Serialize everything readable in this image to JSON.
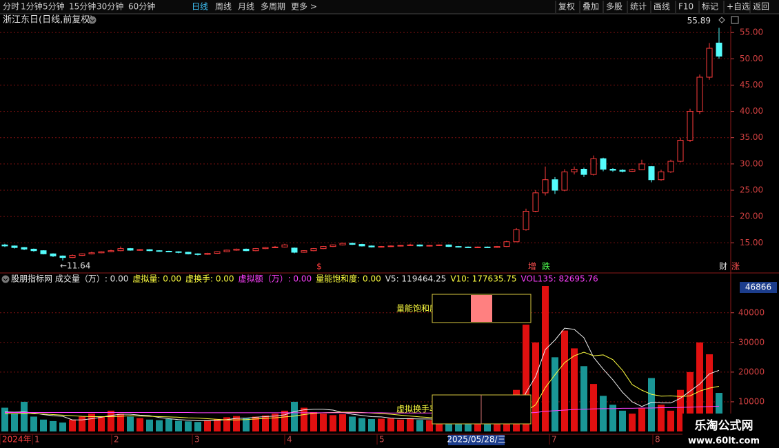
{
  "toolbar": {
    "left": [
      "分时",
      "1分钟",
      "5分钟",
      "15分钟",
      "30分钟",
      "60分钟",
      "日线",
      "周线",
      "月线",
      "多周期",
      "更多 >"
    ],
    "right": [
      "复权",
      "叠加",
      "多股",
      "统计",
      "画线",
      "F10",
      "标记",
      "+自选",
      "返回"
    ]
  },
  "stock_title": "浙江东日(日线,前复权)",
  "chart_data": [
    {
      "type": "candlestick",
      "candles": [
        [
          14.6,
          14.4,
          14.8,
          14.2
        ],
        [
          14.4,
          14.1,
          14.5,
          13.9
        ],
        [
          14.1,
          13.8,
          14.2,
          13.6
        ],
        [
          13.8,
          13.5,
          13.9,
          13.3
        ],
        [
          13.5,
          12.9,
          13.6,
          12.8
        ],
        [
          12.9,
          12.5,
          13.0,
          12.3
        ],
        [
          12.5,
          12.2,
          12.6,
          11.64
        ],
        [
          12.2,
          12.6,
          12.8,
          12.1
        ],
        [
          12.6,
          12.9,
          13.0,
          12.5
        ],
        [
          12.9,
          13.1,
          13.3,
          12.8
        ],
        [
          13.1,
          13.3,
          13.4,
          13.0
        ],
        [
          13.3,
          13.5,
          13.7,
          13.2
        ],
        [
          13.5,
          13.9,
          14.3,
          13.4
        ],
        [
          13.9,
          13.6,
          14.0,
          13.5
        ],
        [
          13.6,
          13.7,
          13.8,
          13.5
        ],
        [
          13.7,
          13.5,
          13.8,
          13.4
        ],
        [
          13.5,
          13.4,
          13.6,
          13.3
        ],
        [
          13.4,
          13.3,
          13.5,
          13.2
        ],
        [
          13.3,
          13.2,
          13.4,
          13.0
        ],
        [
          13.2,
          12.9,
          13.3,
          12.8
        ],
        [
          12.9,
          12.8,
          13.0,
          12.6
        ],
        [
          12.8,
          13.0,
          13.1,
          12.7
        ],
        [
          13.0,
          13.3,
          13.4,
          12.9
        ],
        [
          13.3,
          13.6,
          13.7,
          13.2
        ],
        [
          13.6,
          13.8,
          13.9,
          13.5
        ],
        [
          13.8,
          13.5,
          13.9,
          13.4
        ],
        [
          13.5,
          13.9,
          14.0,
          13.4
        ],
        [
          13.9,
          14.1,
          14.2,
          13.8
        ],
        [
          14.1,
          14.2,
          14.4,
          14.0
        ],
        [
          14.2,
          14.6,
          14.8,
          14.1
        ],
        [
          14.0,
          13.2,
          14.1,
          13.0
        ],
        [
          13.2,
          13.5,
          13.6,
          13.1
        ],
        [
          13.5,
          13.9,
          14.0,
          13.4
        ],
        [
          13.9,
          14.3,
          14.4,
          13.8
        ],
        [
          14.3,
          14.6,
          14.7,
          14.2
        ],
        [
          14.6,
          14.9,
          15.0,
          14.5
        ],
        [
          14.9,
          14.7,
          15.0,
          14.6
        ],
        [
          14.7,
          14.4,
          14.8,
          14.3
        ],
        [
          14.4,
          14.2,
          14.5,
          14.1
        ],
        [
          14.2,
          14.3,
          14.4,
          14.1
        ],
        [
          14.3,
          14.4,
          14.5,
          14.2
        ],
        [
          14.4,
          14.5,
          14.6,
          14.3
        ],
        [
          14.5,
          14.6,
          14.8,
          14.4
        ],
        [
          14.6,
          14.4,
          14.7,
          14.3
        ],
        [
          14.4,
          14.5,
          14.6,
          14.3
        ],
        [
          14.5,
          14.6,
          14.7,
          14.4
        ],
        [
          14.6,
          14.3,
          14.7,
          14.2
        ],
        [
          14.3,
          14.2,
          14.4,
          14.1
        ],
        [
          14.2,
          14.1,
          14.3,
          14.0
        ],
        [
          14.1,
          14.2,
          14.3,
          14.0
        ],
        [
          14.2,
          14.1,
          14.3,
          14.0
        ],
        [
          14.1,
          14.3,
          14.4,
          14.0
        ],
        [
          14.3,
          15.2,
          15.4,
          14.2
        ],
        [
          15.2,
          17.5,
          17.8,
          15.1
        ],
        [
          17.5,
          21.0,
          21.5,
          17.3
        ],
        [
          21.0,
          24.5,
          25.0,
          20.8
        ],
        [
          24.5,
          27.0,
          29.5,
          24.0
        ],
        [
          27.0,
          25.0,
          27.5,
          24.3
        ],
        [
          25.0,
          28.5,
          29.0,
          24.8
        ],
        [
          28.5,
          29.0,
          29.5,
          28.0
        ],
        [
          29.0,
          28.0,
          29.3,
          27.5
        ],
        [
          28.0,
          31.0,
          31.6,
          27.8
        ],
        [
          31.0,
          29.0,
          31.2,
          28.6
        ],
        [
          29.0,
          28.8,
          29.2,
          28.5
        ],
        [
          28.8,
          28.6,
          29.0,
          28.4
        ],
        [
          28.6,
          28.9,
          29.1,
          28.5
        ],
        [
          28.9,
          30.0,
          30.8,
          28.8
        ],
        [
          29.5,
          27.0,
          29.6,
          26.5
        ],
        [
          27.0,
          28.5,
          28.9,
          26.8
        ],
        [
          28.5,
          30.5,
          30.8,
          28.3
        ],
        [
          30.5,
          34.5,
          35.0,
          30.3
        ],
        [
          34.5,
          40.0,
          40.5,
          34.2
        ],
        [
          40.0,
          46.5,
          47.0,
          39.5
        ],
        [
          46.5,
          52.0,
          53.0,
          46.0
        ],
        [
          53.0,
          50.5,
          55.89,
          50.0
        ]
      ],
      "ylim": [
        9.4,
        56.2
      ],
      "yticks": [
        {
          "value": 15,
          "label": "15.00"
        },
        {
          "value": 20,
          "label": "20.00"
        },
        {
          "value": 25,
          "label": "25.00"
        },
        {
          "value": 30,
          "label": "30.00"
        },
        {
          "value": 35,
          "label": "35.00"
        },
        {
          "value": 40,
          "label": "40.00"
        },
        {
          "value": 45,
          "label": "45.00"
        },
        {
          "value": 50,
          "label": "50.00"
        },
        {
          "value": 55,
          "label": "55.00"
        }
      ],
      "grid": true,
      "up_color": "#ff3c3c",
      "down_color": "#54fcfc",
      "low_label": "←11.64",
      "high_label": "55.89",
      "markers": [
        {
          "text": "$",
          "color": "#ff3c3c"
        },
        {
          "text": "增",
          "color": "#ff5050"
        },
        {
          "text": "跌",
          "color": "#50ff50"
        },
        {
          "text": "财",
          "color": "#e0e0e0"
        },
        {
          "text": "涨",
          "color": "#ff5050"
        }
      ]
    },
    {
      "type": "bar",
      "header": [
        {
          "text": "股朋指标网 成交量（万）: 0.00",
          "color": "#e8e8e8"
        },
        {
          "text": "虚拟量: 0.00",
          "color": "#ffff40"
        },
        {
          "text": "虚换手: 0.00",
          "color": "#ffff40"
        },
        {
          "text": "虚拟额（万）: 0.00",
          "color": "#ff40ff"
        },
        {
          "text": "量能饱和度: 0.00",
          "color": "#ffff40"
        },
        {
          "text": "V5: 119464.25",
          "color": "#e8e8e8"
        },
        {
          "text": "V10: 177635.75",
          "color": "#ffff40"
        },
        {
          "text": "VOL135: 82695.76",
          "color": "#ff40ff"
        }
      ],
      "values": [
        8000,
        6000,
        10000,
        5000,
        4000,
        3500,
        3000,
        4000,
        5000,
        6000,
        5000,
        7000,
        6000,
        5000,
        4500,
        4000,
        3800,
        4200,
        3600,
        3400,
        3200,
        3800,
        4200,
        4800,
        5200,
        4600,
        5000,
        5400,
        6000,
        7000,
        10000,
        8000,
        6500,
        6000,
        5500,
        5800,
        5000,
        4500,
        4200,
        4300,
        4400,
        4000,
        4500,
        3900,
        3800,
        4200,
        3600,
        3500,
        3400,
        3300,
        3200,
        3500,
        9000,
        14000,
        36000,
        30000,
        49000,
        25000,
        34000,
        28000,
        22000,
        16000,
        12000,
        9000,
        7000,
        6000,
        8000,
        18000,
        9000,
        7000,
        14000,
        20000,
        30000,
        26000,
        13000
      ],
      "up_color": "#e01010",
      "down_color": "#1a9696",
      "lines": [
        {
          "color": "#f0f0f0",
          "values": [
            6600,
            6500,
            6600,
            6200,
            5700,
            5300,
            5100,
            3900,
            3900,
            4300,
            4800,
            5400,
            5800,
            5800,
            5500,
            5300,
            4700,
            4300,
            4000,
            3800,
            3600,
            3600,
            3700,
            4000,
            4400,
            4500,
            4800,
            5000,
            5200,
            5600,
            6700,
            7300,
            7500,
            7500,
            7200,
            6400,
            5800,
            5400,
            5000,
            4900,
            4500,
            4300,
            4300,
            4200,
            4200,
            4100,
            4000,
            3900,
            3700,
            3600,
            3400,
            3400,
            4500,
            6600,
            13100,
            18500,
            27600,
            30800,
            34800,
            34400,
            31600,
            25000,
            21000,
            17400,
            13200,
            10000,
            8400,
            9800,
            9600,
            9600,
            11200,
            13600,
            16000,
            19400,
            20600
          ]
        },
        {
          "color": "#ffff40",
          "values": [
            6000,
            6000,
            6100,
            6000,
            5900,
            5700,
            5500,
            5300,
            5100,
            5000,
            5000,
            5000,
            5100,
            5300,
            5200,
            5100,
            5000,
            4900,
            4800,
            4600,
            4500,
            4300,
            4100,
            3900,
            3900,
            4000,
            4200,
            4400,
            4600,
            4900,
            5200,
            5700,
            6100,
            6300,
            6400,
            6500,
            6500,
            6400,
            6200,
            6000,
            5800,
            5500,
            5200,
            4900,
            4700,
            4600,
            4400,
            4300,
            4100,
            4000,
            3900,
            3800,
            4100,
            4600,
            6800,
            9000,
            14800,
            19100,
            23200,
            25500,
            26700,
            25500,
            25800,
            24200,
            20600,
            15800,
            13900,
            12500,
            11900,
            12000,
            11800,
            12000,
            13600,
            14600,
            15200
          ]
        },
        {
          "color": "#ff40ff",
          "values": [
            6400,
            6400,
            6400,
            6400,
            6400,
            6400,
            6400,
            6400,
            6400,
            6400,
            6400,
            6400,
            6400,
            6400,
            6400,
            6400,
            6400,
            6400,
            6400,
            6400,
            6300,
            6300,
            6300,
            6300,
            6300,
            6300,
            6300,
            6300,
            6300,
            6300,
            6300,
            6300,
            6300,
            6300,
            6300,
            6300,
            6300,
            6300,
            6300,
            6300,
            6200,
            6200,
            6200,
            6200,
            6200,
            6200,
            6200,
            6200,
            6200,
            6200,
            6200,
            6200,
            6200,
            6200,
            6200,
            6400,
            6800,
            7000,
            7200,
            7400,
            7500,
            7600,
            7700,
            7700,
            7800,
            7800,
            7900,
            7900,
            8000,
            8000,
            8100,
            8200,
            8300,
            8400,
            8500
          ]
        }
      ],
      "ylim": [
        0,
        49000
      ],
      "yticks": [
        10000,
        20000,
        30000,
        40000
      ],
      "grid": true,
      "highlight_value": "46866",
      "overlay_labels": [
        "量能饱和度",
        "虚拟换手率"
      ]
    }
  ],
  "x_axis": {
    "labels": [
      "2024年",
      "1",
      "2",
      "3",
      "4",
      "5",
      "7",
      "8"
    ],
    "cursor_date": "2025/05/28/三"
  },
  "watermark": {
    "name": "乐淘公式网",
    "url": "www.60lt.com"
  }
}
